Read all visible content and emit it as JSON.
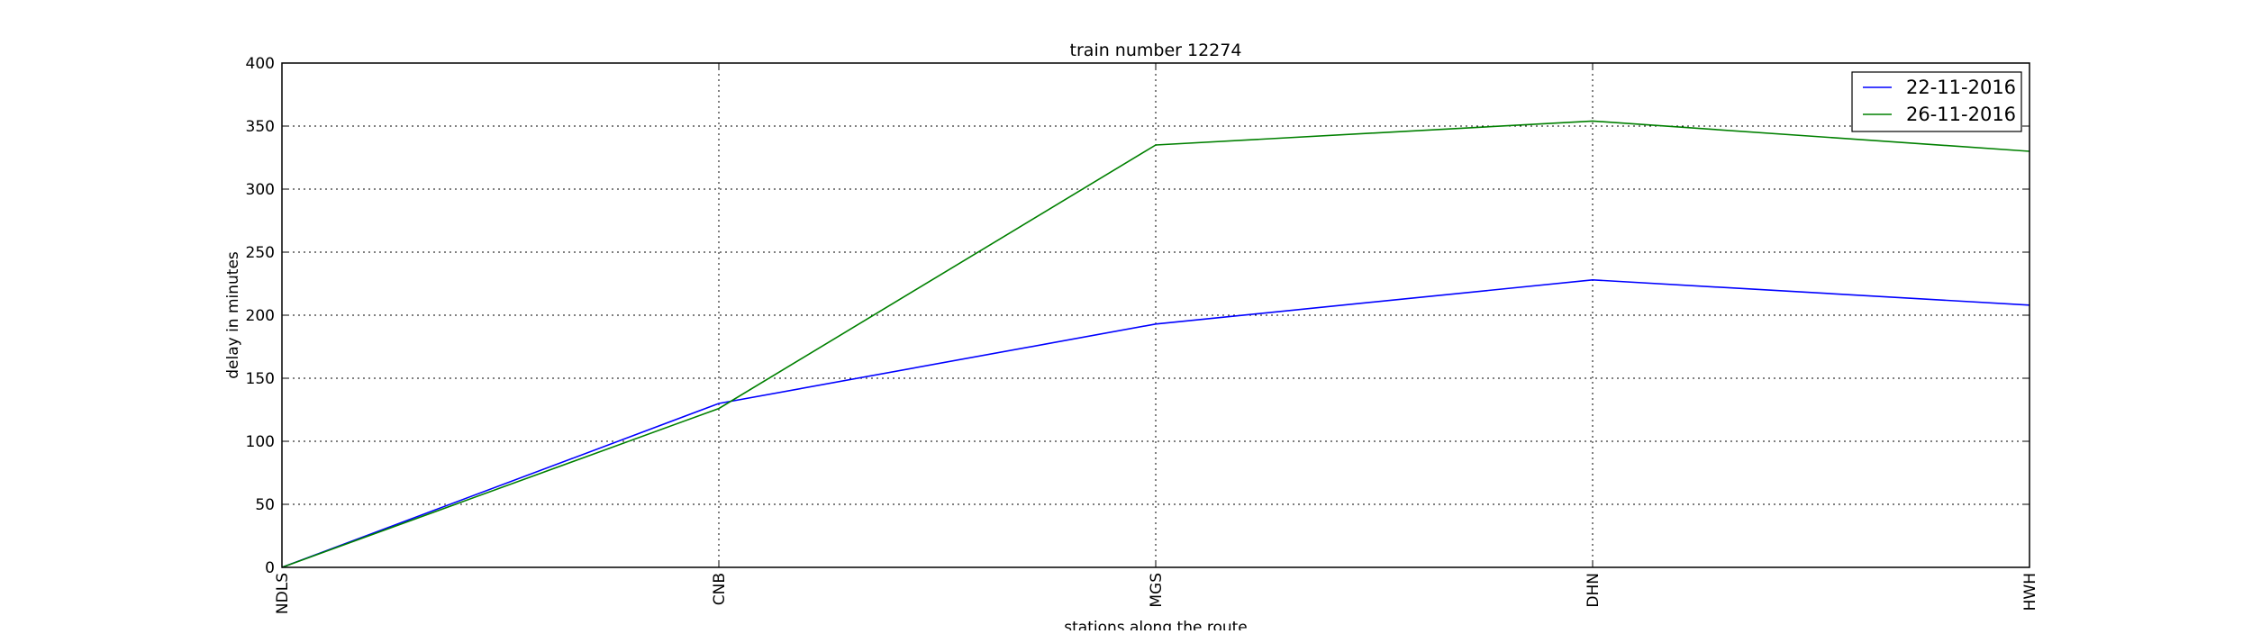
{
  "chart_data": {
    "type": "line",
    "title": "train number 12274",
    "xlabel": "stations along the route",
    "ylabel": "delay in minutes",
    "categories": [
      "NDLS",
      "CNB",
      "MGS",
      "DHN",
      "HWH"
    ],
    "ylim": [
      0,
      400
    ],
    "yticks": [
      0,
      50,
      100,
      150,
      200,
      250,
      300,
      350,
      400
    ],
    "grid": true,
    "legend_position": "top-right",
    "series": [
      {
        "name": "22-11-2016",
        "color": "#0000ff",
        "values": [
          0,
          130,
          193,
          228,
          208
        ]
      },
      {
        "name": "26-11-2016",
        "color": "#008000",
        "values": [
          0,
          126,
          335,
          354,
          330
        ]
      }
    ]
  }
}
